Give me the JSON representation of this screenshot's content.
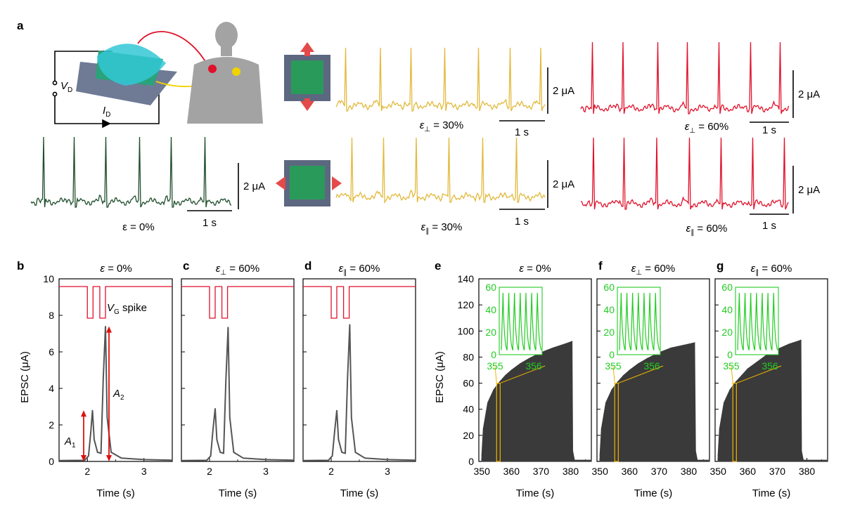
{
  "panel_a": {
    "label": "a",
    "circuit": {
      "vd_label": "V",
      "vd_sub": "D",
      "id_label": "I",
      "id_sub": "D"
    },
    "scalebar_current": "2 μA",
    "scalebar_time": "1 s",
    "traces": [
      {
        "label_pre": "ε = 0%",
        "sym": "",
        "sub": "",
        "post": "",
        "color": "#1e4d2b"
      },
      {
        "label_pre": "",
        "sym": "ε",
        "sub": "⊥",
        "post": " = 30%",
        "color": "#e2b93b"
      },
      {
        "label_pre": "",
        "sym": "ε",
        "sub": "⊥",
        "post": " = 60%",
        "color": "#e0112b"
      },
      {
        "label_pre": "",
        "sym": "ε",
        "sub": "∥",
        "post": " = 30%",
        "color": "#e2b93b"
      },
      {
        "label_pre": "",
        "sym": "ε",
        "sub": "∥",
        "post": " = 60%",
        "color": "#e0112b"
      }
    ]
  },
  "panels_bcd": [
    {
      "label": "b",
      "title_sym": "ε",
      "title_sub": "",
      "title_post": " = 0%"
    },
    {
      "label": "c",
      "title_sym": "ε",
      "title_sub": "⊥",
      "title_post": " = 60%"
    },
    {
      "label": "d",
      "title_sym": "ε",
      "title_sub": "∥",
      "title_post": " = 60%"
    }
  ],
  "panels_efg": [
    {
      "label": "e",
      "title_sym": "ε",
      "title_sub": "",
      "title_post": " = 0%"
    },
    {
      "label": "f",
      "title_sym": "ε",
      "title_sub": "⊥",
      "title_post": " = 60%"
    },
    {
      "label": "g",
      "title_sym": "ε",
      "title_sub": "∥",
      "title_post": " = 60%"
    }
  ],
  "annotations": {
    "vg_spike_sym": "V",
    "vg_spike_sub": "G",
    "vg_spike_post": " spike",
    "a1_sym": "A",
    "a1_sub": "1",
    "a2_sym": "A",
    "a2_sub": "2"
  },
  "colors": {
    "trace_dark": "#555555",
    "vg_red": "#e0112b",
    "inset_green": "#22cc22",
    "zoom_orange": "#f0b400",
    "fill_dark": "#3a3a3a"
  },
  "chart_data": [
    {
      "type": "line",
      "panel": "b",
      "xlabel": "Time (s)",
      "ylabel": "EPSC (μA)",
      "xlim": [
        1.5,
        3.5
      ],
      "ylim": [
        0,
        10
      ],
      "xticks": [
        2,
        3
      ],
      "yticks": [
        0,
        2,
        4,
        6,
        8,
        10
      ],
      "series": [
        {
          "x": [
            1.5,
            1.95,
            2.02,
            2.06,
            2.09,
            2.12,
            2.18,
            2.24,
            2.28,
            2.32,
            2.35,
            2.42,
            2.6,
            3.0,
            3.5
          ],
          "y": [
            0.05,
            0.06,
            0.3,
            1.6,
            2.8,
            1.2,
            0.5,
            0.45,
            4.5,
            7.4,
            2.4,
            0.5,
            0.18,
            0.1,
            0.07
          ]
        }
      ]
    },
    {
      "type": "line",
      "panel": "c",
      "xlabel": "Time (s)",
      "ylabel": "",
      "xlim": [
        1.5,
        3.5
      ],
      "ylim": [
        0,
        10
      ],
      "xticks": [
        2,
        3
      ],
      "yticks": [
        0,
        2,
        4,
        6,
        8,
        10
      ],
      "series": [
        {
          "x": [
            1.5,
            1.95,
            2.02,
            2.06,
            2.1,
            2.13,
            2.19,
            2.25,
            2.29,
            2.33,
            2.36,
            2.43,
            2.6,
            3.0,
            3.5
          ],
          "y": [
            0.05,
            0.06,
            0.3,
            1.7,
            2.9,
            1.2,
            0.5,
            0.45,
            4.4,
            7.35,
            2.4,
            0.5,
            0.18,
            0.1,
            0.07
          ]
        }
      ]
    },
    {
      "type": "line",
      "panel": "d",
      "xlabel": "Time (s)",
      "ylabel": "",
      "xlim": [
        1.5,
        3.5
      ],
      "ylim": [
        0,
        10
      ],
      "xticks": [
        2,
        3
      ],
      "yticks": [
        0,
        2,
        4,
        6,
        8,
        10
      ],
      "series": [
        {
          "x": [
            1.5,
            1.95,
            2.02,
            2.06,
            2.1,
            2.13,
            2.19,
            2.25,
            2.29,
            2.33,
            2.36,
            2.43,
            2.6,
            3.0,
            3.5
          ],
          "y": [
            0.05,
            0.06,
            0.3,
            1.6,
            2.8,
            1.2,
            0.5,
            0.45,
            4.5,
            7.5,
            2.4,
            0.5,
            0.18,
            0.1,
            0.07
          ]
        }
      ]
    },
    {
      "type": "area",
      "panel": "e",
      "xlabel": "Time (s)",
      "ylabel": "EPSC (μA)",
      "xlim": [
        349,
        387
      ],
      "ylim": [
        0,
        140
      ],
      "xticks": [
        350,
        360,
        370,
        380
      ],
      "yticks": [
        0,
        20,
        40,
        60,
        80,
        100,
        120,
        140
      ],
      "series": [
        {
          "x": [
            350,
            350.5,
            352,
            354,
            356,
            358,
            360,
            363,
            366,
            370,
            374,
            378,
            380.5
          ],
          "y": [
            5,
            25,
            45,
            55,
            61,
            66,
            70,
            75,
            79,
            83.5,
            87,
            90,
            92
          ]
        }
      ],
      "end_x": 380.7,
      "lower_envelope": 8,
      "inset": {
        "ylim": [
          0,
          60
        ],
        "yticks": [
          0,
          20,
          40,
          60
        ],
        "xticks": [
          355,
          356
        ]
      }
    },
    {
      "type": "area",
      "panel": "f",
      "xlabel": "Time (s)",
      "ylabel": "",
      "xlim": [
        349,
        387
      ],
      "ylim": [
        0,
        140
      ],
      "xticks": [
        350,
        360,
        370,
        380
      ],
      "yticks": [
        0,
        20,
        40,
        60,
        80,
        100,
        120,
        140
      ],
      "series": [
        {
          "x": [
            350,
            350.5,
            352,
            354,
            356,
            358,
            360,
            363,
            366,
            370,
            374,
            378,
            382
          ],
          "y": [
            5,
            25,
            45,
            55,
            61,
            66,
            70,
            75,
            79,
            83.5,
            87,
            89,
            91
          ]
        }
      ],
      "end_x": 382.3,
      "lower_envelope": 8,
      "inset": {
        "ylim": [
          0,
          60
        ],
        "yticks": [
          0,
          20,
          40,
          60
        ],
        "xticks": [
          355,
          356
        ]
      }
    },
    {
      "type": "area",
      "panel": "g",
      "xlabel": "Time (s)",
      "ylabel": "",
      "xlim": [
        349,
        387
      ],
      "ylim": [
        0,
        140
      ],
      "xticks": [
        350,
        360,
        370,
        380
      ],
      "yticks": [
        0,
        20,
        40,
        60,
        80,
        100,
        120,
        140
      ],
      "series": [
        {
          "x": [
            350,
            350.5,
            352,
            354,
            356,
            358,
            360,
            363,
            366,
            370,
            374,
            378
          ],
          "y": [
            5,
            25,
            45,
            55,
            61,
            66,
            71,
            76,
            81,
            86,
            90,
            93
          ]
        }
      ],
      "end_x": 378.2,
      "lower_envelope": 8,
      "inset": {
        "ylim": [
          0,
          60
        ],
        "yticks": [
          0,
          20,
          40,
          60
        ],
        "xticks": [
          355,
          356
        ]
      }
    }
  ]
}
